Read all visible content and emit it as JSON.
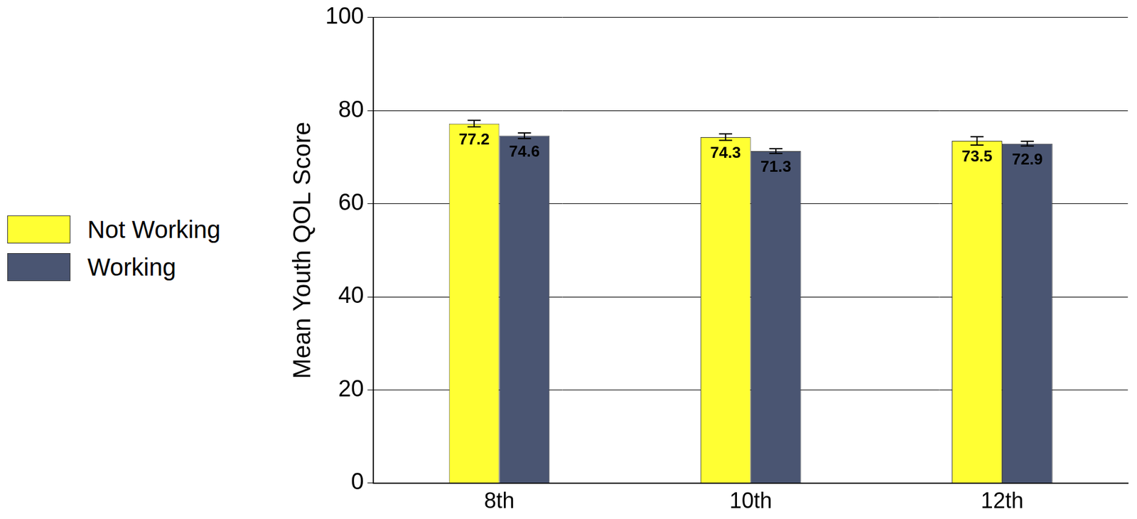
{
  "chart_data": {
    "type": "bar",
    "categories": [
      "8th",
      "10th",
      "12th"
    ],
    "y_label": "Mean Youth QOL Score",
    "series": [
      {
        "name": "Not Working",
        "color": "#ffff33",
        "values": [
          77.2,
          74.3,
          73.5
        ],
        "errors": [
          0.7,
          0.7,
          0.9
        ]
      },
      {
        "name": "Working",
        "color": "#4a5572",
        "values": [
          74.6,
          71.3,
          72.9
        ],
        "errors": [
          0.6,
          0.5,
          0.5
        ]
      }
    ],
    "ylim": [
      0,
      100
    ],
    "yticks": [
      0,
      20,
      40,
      60,
      80,
      100
    ],
    "grid": true,
    "legend": "left",
    "data_labels": true
  }
}
